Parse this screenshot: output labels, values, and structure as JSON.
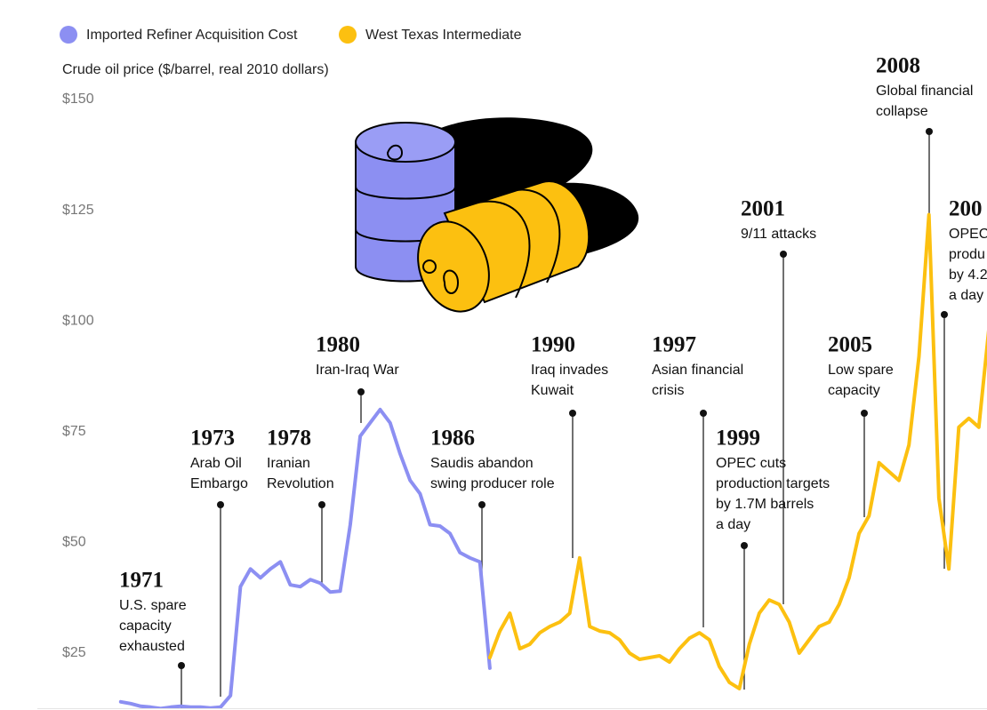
{
  "chart_data": {
    "type": "line",
    "y_label": "Crude oil price ($/barrel, real 2010 dollars)",
    "x": [
      1968,
      1968.5,
      1969,
      1969.5,
      1970,
      1970.5,
      1971,
      1971.5,
      1972,
      1972.5,
      1973,
      1973.5,
      1974,
      1974.5,
      1975,
      1975.5,
      1976,
      1976.5,
      1977,
      1977.5,
      1978,
      1978.5,
      1979,
      1979.5,
      1980,
      1980.5,
      1981,
      1981.5,
      1982,
      1982.5,
      1983,
      1983.5,
      1984,
      1984.5,
      1985,
      1985.5,
      1986,
      1986.5,
      1987,
      1987.5,
      1988,
      1988.5,
      1989,
      1989.5,
      1990,
      1990.5,
      1991,
      1991.5,
      1992,
      1992.5,
      1993,
      1993.5,
      1994,
      1994.5,
      1995,
      1995.5,
      1996,
      1996.5,
      1997,
      1997.5,
      1998,
      1998.5,
      1999,
      1999.5,
      2000,
      2000.5,
      2001,
      2001.5,
      2002,
      2002.5,
      2003,
      2003.5,
      2004,
      2004.5,
      2005,
      2005.5,
      2006,
      2006.5,
      2007,
      2007.5,
      2008,
      2008.5,
      2009,
      2009.5,
      2010,
      2010.5,
      2011,
      2011.5
    ],
    "xlim": [
      1964,
      2011.5
    ],
    "ylim": [
      12.5,
      150
    ],
    "yticks": [
      {
        "value": 25,
        "label": "$25"
      },
      {
        "value": 50,
        "label": "$50"
      },
      {
        "value": 75,
        "label": "$75"
      },
      {
        "value": 100,
        "label": "$100"
      },
      {
        "value": 125,
        "label": "$125"
      },
      {
        "value": 150,
        "label": "$150"
      }
    ],
    "grid": false,
    "series": [
      {
        "name": "Imported Refiner Acquisition Cost",
        "color": "#8c8ff2",
        "values": [
          14,
          13.6,
          13,
          12.8,
          12.5,
          12.8,
          13,
          12.8,
          12.8,
          12.6,
          12.8,
          15.4,
          40,
          44,
          42,
          44,
          45.6,
          40.4,
          40,
          41.6,
          40.8,
          38.8,
          39,
          54,
          74,
          77,
          80,
          77,
          70,
          64,
          61,
          54,
          53.7,
          52,
          47.7,
          46.5,
          45.6,
          21.6,
          null,
          null,
          null,
          null,
          null,
          null,
          null,
          null,
          null,
          null,
          null,
          null,
          null,
          null,
          null,
          null,
          null,
          null,
          null,
          null,
          null,
          null,
          null,
          null,
          null,
          null,
          null,
          null,
          null,
          null,
          null,
          null,
          null,
          null,
          null,
          null,
          null,
          null,
          null,
          null,
          null,
          null,
          null,
          null,
          null,
          null,
          null,
          null,
          null,
          null
        ]
      },
      {
        "name": "West Texas Intermediate",
        "color": "#fcc010",
        "values": [
          null,
          null,
          null,
          null,
          null,
          null,
          null,
          null,
          null,
          null,
          null,
          null,
          null,
          null,
          null,
          null,
          null,
          null,
          null,
          null,
          null,
          null,
          null,
          null,
          null,
          null,
          null,
          null,
          null,
          null,
          null,
          null,
          null,
          null,
          null,
          null,
          null,
          24,
          30,
          34,
          26,
          27,
          29.6,
          31,
          32,
          34,
          46.5,
          31,
          30,
          29.6,
          28,
          25,
          23.6,
          24,
          24.4,
          23,
          26,
          28.4,
          29.6,
          28,
          22,
          18.4,
          17,
          27,
          34,
          37,
          36,
          32,
          25,
          28,
          31,
          32,
          36,
          42,
          52,
          56,
          68,
          66,
          64,
          72,
          92,
          124,
          60,
          44,
          76,
          78,
          76,
          98
        ]
      }
    ],
    "annotations": [
      {
        "year": "1971",
        "lines": [
          "U.S. spare",
          "capacity",
          "exhausted"
        ]
      },
      {
        "year": "1973",
        "lines": [
          "Arab Oil",
          "Embargo"
        ]
      },
      {
        "year": "1978",
        "lines": [
          "Iranian",
          "Revolution"
        ]
      },
      {
        "year": "1980",
        "lines": [
          "Iran-Iraq War"
        ]
      },
      {
        "year": "1986",
        "lines": [
          "Saudis abandon",
          "swing producer role"
        ]
      },
      {
        "year": "1990",
        "lines": [
          "Iraq invades",
          "Kuwait"
        ]
      },
      {
        "year": "1997",
        "lines": [
          "Asian financial",
          "crisis"
        ]
      },
      {
        "year": "1999",
        "lines": [
          "OPEC cuts",
          "production targets",
          "by 1.7M barrels",
          "a day"
        ]
      },
      {
        "year": "2001",
        "lines": [
          "9/11 attacks"
        ]
      },
      {
        "year": "2005",
        "lines": [
          "Low spare",
          "capacity"
        ]
      },
      {
        "year": "2008",
        "lines": [
          "Global financial",
          "collapse"
        ]
      },
      {
        "year": "200",
        "lines": [
          "OPEC",
          "produ",
          "by 4.2",
          "a day"
        ]
      }
    ]
  }
}
